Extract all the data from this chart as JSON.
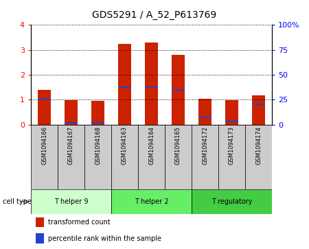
{
  "title": "GDS5291 / A_52_P613769",
  "samples": [
    "GSM1094166",
    "GSM1094167",
    "GSM1094168",
    "GSM1094163",
    "GSM1094164",
    "GSM1094165",
    "GSM1094172",
    "GSM1094173",
    "GSM1094174"
  ],
  "red_values": [
    1.4,
    0.97,
    0.95,
    3.25,
    3.28,
    2.8,
    1.02,
    0.97,
    1.18
  ],
  "blue_values": [
    1.0,
    0.08,
    0.08,
    1.5,
    1.5,
    1.38,
    0.28,
    0.12,
    0.82
  ],
  "groups": [
    {
      "label": "T helper 9",
      "indices": [
        0,
        1,
        2
      ],
      "color": "#ccffcc"
    },
    {
      "label": "T helper 2",
      "indices": [
        3,
        4,
        5
      ],
      "color": "#66ee66"
    },
    {
      "label": "T regulatory",
      "indices": [
        6,
        7,
        8
      ],
      "color": "#44cc44"
    }
  ],
  "cell_type_label": "cell type",
  "ylim_left": [
    0,
    4
  ],
  "ylim_right": [
    0,
    100
  ],
  "yticks_left": [
    0,
    1,
    2,
    3,
    4
  ],
  "yticks_right": [
    0,
    25,
    50,
    75,
    100
  ],
  "yticklabels_right": [
    "0",
    "25",
    "50",
    "75",
    "100%"
  ],
  "bar_color": "#cc2200",
  "blue_color": "#2244cc",
  "bar_width": 0.5,
  "sample_bg": "#cccccc",
  "legend_items": [
    "transformed count",
    "percentile rank within the sample"
  ],
  "legend_colors": [
    "#cc2200",
    "#2244cc"
  ]
}
